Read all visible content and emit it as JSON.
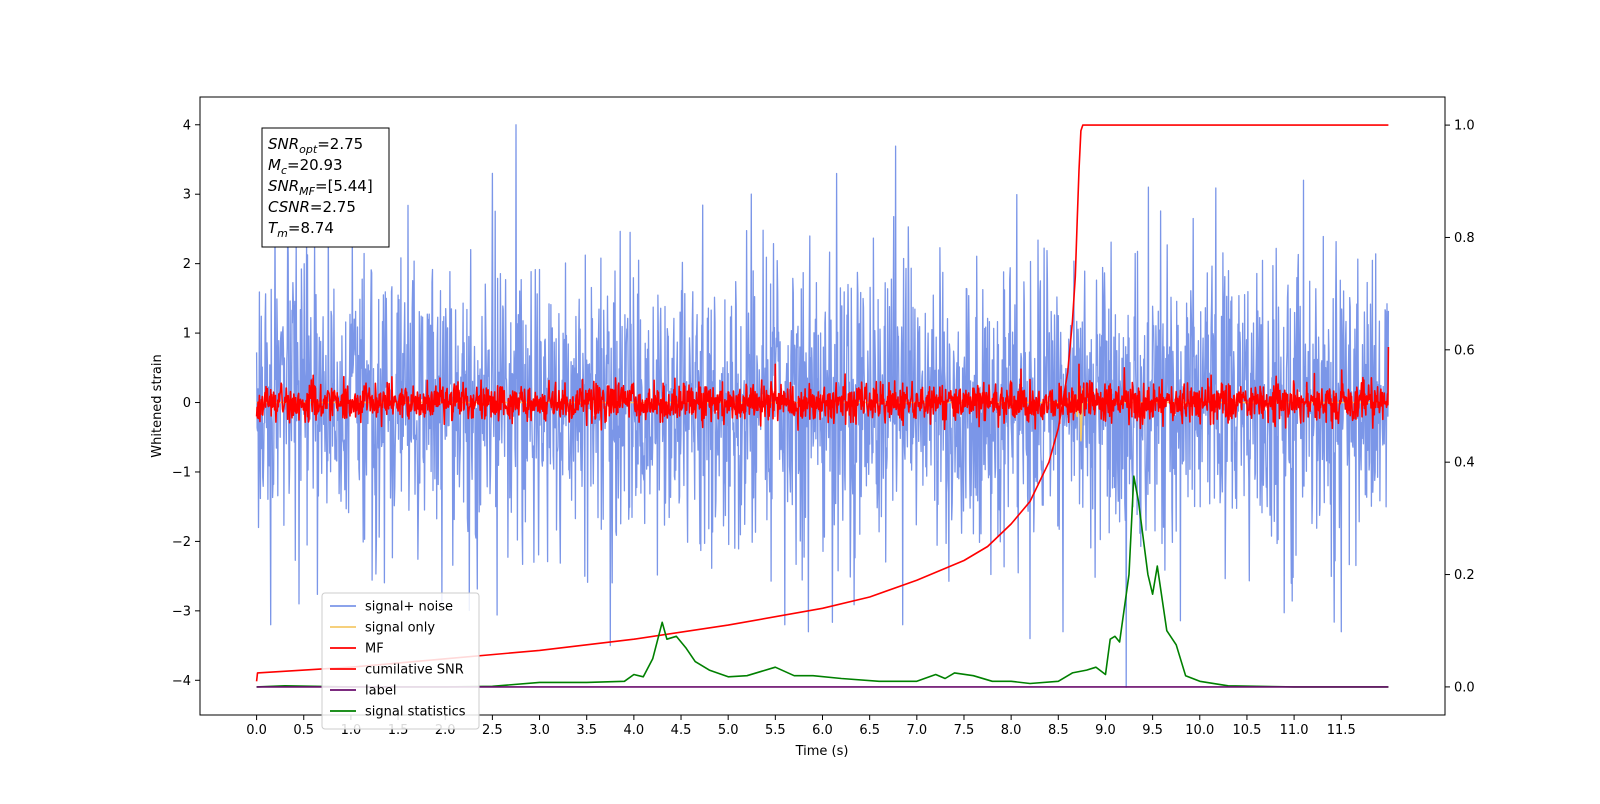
{
  "chart_data": {
    "type": "line",
    "title": "",
    "xlabel": "Time (s)",
    "ylabel": "Whitened strain",
    "y2label": "",
    "xlim": [
      -0.6,
      12.6
    ],
    "ylim": [
      -4.5,
      4.4
    ],
    "y2lim": [
      -0.05,
      1.05
    ],
    "x_ticks": [
      0.0,
      0.5,
      1.0,
      1.5,
      2.0,
      2.5,
      3.0,
      3.5,
      4.0,
      4.5,
      5.0,
      5.5,
      6.0,
      6.5,
      7.0,
      7.5,
      8.0,
      8.5,
      9.0,
      9.5,
      10.0,
      10.5,
      11.0,
      11.5
    ],
    "x_tick_labels": [
      "0.0",
      "0.5",
      "1.0",
      "1.5",
      "2.0",
      "2.5",
      "3.0",
      "3.5",
      "4.0",
      "4.5",
      "5.0",
      "5.5",
      "6.0",
      "6.5",
      "7.0",
      "7.5",
      "8.0",
      "8.5",
      "9.0",
      "9.5",
      "10.0",
      "10.5",
      "11.0",
      "11.5"
    ],
    "y_ticks": [
      4,
      3,
      2,
      1,
      0,
      -1,
      -2,
      -3,
      -4
    ],
    "y_tick_labels": [
      "4",
      "3",
      "2",
      "1",
      "0",
      "−1",
      "−2",
      "−3",
      "−4"
    ],
    "y2_ticks": [
      1.0,
      0.8,
      0.6,
      0.4,
      0.2,
      0.0
    ],
    "y2_tick_labels": [
      "1.0",
      "0.8",
      "0.6",
      "0.4",
      "0.2",
      "0.0"
    ],
    "grid": false,
    "legend_position": "lower-left",
    "annotation": {
      "lines": [
        {
          "base": "SNR",
          "sub": "opt",
          "value": "=2.75"
        },
        {
          "base": "M",
          "sub": "c",
          "value": "=20.93"
        },
        {
          "base": "SNR",
          "sub": "MF",
          "value": "=[5.44]"
        },
        {
          "base": "CSNR",
          "sub": "",
          "value": "=2.75"
        },
        {
          "base": "T",
          "sub": "m",
          "value": "=8.74"
        }
      ]
    },
    "series": [
      {
        "name": "signal+ noise",
        "axis": "left",
        "color": "#7b96e8",
        "kind": "noise",
        "x_range": [
          0.0,
          12.0
        ],
        "amplitude_sd": 1.0,
        "spikes": [
          [
            2.75,
            4.0
          ],
          [
            2.5,
            3.3
          ],
          [
            11.1,
            3.2
          ],
          [
            3.75,
            -3.5
          ],
          [
            9.22,
            -4.1
          ],
          [
            8.2,
            -3.4
          ],
          [
            0.15,
            -3.2
          ],
          [
            0.45,
            -2.9
          ],
          [
            5.85,
            -3.3
          ],
          [
            5.6,
            -3.2
          ],
          [
            6.85,
            -3.2
          ],
          [
            8.55,
            -3.3
          ],
          [
            11.5,
            -3.3
          ]
        ]
      },
      {
        "name": "signal only",
        "axis": "left",
        "color": "#f5c96a",
        "x": [
          0.0,
          8.6,
          8.66,
          8.7,
          8.72,
          8.74,
          8.76,
          8.78,
          12.0
        ],
        "y": [
          0.0,
          0.0,
          0.1,
          -0.2,
          0.45,
          -0.55,
          0.2,
          0.0,
          0.0
        ]
      },
      {
        "name": "MF",
        "axis": "left",
        "color": "#ff0000",
        "kind": "noise",
        "x_range": [
          0.0,
          12.0
        ],
        "amplitude_sd": 0.14,
        "spikes": [
          [
            0.0,
            1.0
          ],
          [
            0.0,
            -0.2
          ],
          [
            12.0,
            0.8
          ],
          [
            8.72,
            0.55
          ],
          [
            5.5,
            0.55
          ],
          [
            9.2,
            0.5
          ]
        ]
      },
      {
        "name": "cumilative SNR",
        "axis": "right",
        "color": "#ff0000",
        "x": [
          0.0,
          0.01,
          1.0,
          2.0,
          3.0,
          4.0,
          5.0,
          6.0,
          6.5,
          7.0,
          7.5,
          7.75,
          8.0,
          8.2,
          8.4,
          8.5,
          8.6,
          8.65,
          8.68,
          8.7,
          8.72,
          8.74,
          8.76,
          12.0
        ],
        "y": [
          0.01,
          0.025,
          0.035,
          0.05,
          0.065,
          0.085,
          0.11,
          0.14,
          0.16,
          0.19,
          0.225,
          0.25,
          0.29,
          0.33,
          0.4,
          0.46,
          0.56,
          0.65,
          0.73,
          0.83,
          0.92,
          0.99,
          1.0,
          1.0
        ]
      },
      {
        "name": "label",
        "axis": "right",
        "color": "#6a0d6d",
        "x": [
          0.0,
          12.0
        ],
        "y": [
          0.0,
          0.0
        ]
      },
      {
        "name": "signal statistics",
        "axis": "right",
        "color": "#008000",
        "x": [
          0.0,
          0.3,
          1.0,
          2.0,
          2.5,
          3.0,
          3.5,
          3.9,
          4.0,
          4.1,
          4.2,
          4.3,
          4.35,
          4.45,
          4.55,
          4.65,
          4.8,
          5.0,
          5.2,
          5.5,
          5.7,
          5.9,
          6.2,
          6.6,
          7.0,
          7.2,
          7.3,
          7.4,
          7.6,
          7.8,
          8.0,
          8.2,
          8.5,
          8.65,
          8.8,
          8.9,
          9.0,
          9.05,
          9.1,
          9.15,
          9.2,
          9.25,
          9.3,
          9.35,
          9.45,
          9.5,
          9.55,
          9.65,
          9.75,
          9.85,
          10.0,
          10.3,
          11.0,
          12.0
        ],
        "y": [
          0.0,
          0.002,
          0.0,
          0.0,
          0.001,
          0.008,
          0.008,
          0.01,
          0.022,
          0.018,
          0.05,
          0.115,
          0.085,
          0.09,
          0.07,
          0.045,
          0.03,
          0.018,
          0.02,
          0.035,
          0.02,
          0.02,
          0.015,
          0.01,
          0.01,
          0.022,
          0.015,
          0.025,
          0.02,
          0.01,
          0.01,
          0.006,
          0.01,
          0.025,
          0.03,
          0.035,
          0.022,
          0.085,
          0.09,
          0.08,
          0.14,
          0.2,
          0.375,
          0.33,
          0.2,
          0.165,
          0.215,
          0.1,
          0.075,
          0.02,
          0.01,
          0.002,
          0.0,
          0.0
        ]
      }
    ]
  }
}
